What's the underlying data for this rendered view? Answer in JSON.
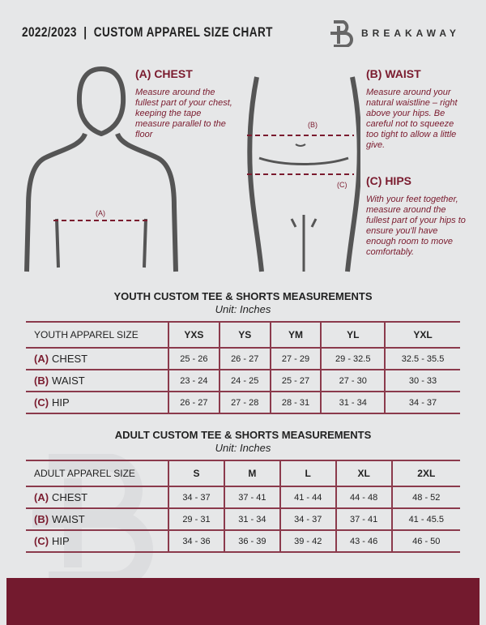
{
  "header": {
    "title": "2022/2023  |  CUSTOM APPAREL SIZE CHART",
    "brand": "BREAKAWAY"
  },
  "chest": {
    "title": "(A) CHEST",
    "text": "Measure around the fullest part of your chest, keeping the tape measure parallel to the floor",
    "marker": "(A)"
  },
  "waist": {
    "title": "(B) WAIST",
    "text": "Measure around your natural waistline – right above your hips. Be careful not to squeeze too tight to allow a little give.",
    "marker": "(B)"
  },
  "hips": {
    "title": "(C) HIPS",
    "text": "With your feet together, measure around the fullest part of your hips to ensure you'll have enough room to move comfortably.",
    "marker": "(C)"
  },
  "accent": "#7a1b2e",
  "youth": {
    "title": "YOUTH CUSTOM TEE & SHORTS MEASUREMENTS",
    "unit": "Unit: Inches",
    "header": "YOUTH APPAREL SIZE",
    "sizes": [
      "YXS",
      "YS",
      "YM",
      "YL",
      "YXL"
    ],
    "rows": [
      {
        "key": "(A)",
        "label": "CHEST",
        "values": [
          "25 - 26",
          "26 - 27",
          "27 - 29",
          "29 - 32.5",
          "32.5 - 35.5"
        ]
      },
      {
        "key": "(B)",
        "label": "WAIST",
        "values": [
          "23 - 24",
          "24 - 25",
          "25 - 27",
          "27 - 30",
          "30 - 33"
        ]
      },
      {
        "key": "(C)",
        "label": "HIP",
        "values": [
          "26 - 27",
          "27 - 28",
          "28 - 31",
          "31 - 34",
          "34 - 37"
        ]
      }
    ]
  },
  "adult": {
    "title": "ADULT CUSTOM TEE & SHORTS MEASUREMENTS",
    "unit": "Unit: Inches",
    "header": "ADULT APPAREL SIZE",
    "sizes": [
      "S",
      "M",
      "L",
      "XL",
      "2XL"
    ],
    "rows": [
      {
        "key": "(A)",
        "label": "CHEST",
        "values": [
          "34 - 37",
          "37 - 41",
          "41 - 44",
          "44 - 48",
          "48 - 52"
        ]
      },
      {
        "key": "(B)",
        "label": "WAIST",
        "values": [
          "29 - 31",
          "31 - 34",
          "34 - 37",
          "37 - 41",
          "41 - 45.5"
        ]
      },
      {
        "key": "(C)",
        "label": "HIP",
        "values": [
          "34 - 36",
          "36 - 39",
          "39 - 42",
          "43 - 46",
          "46 - 50"
        ]
      }
    ]
  }
}
